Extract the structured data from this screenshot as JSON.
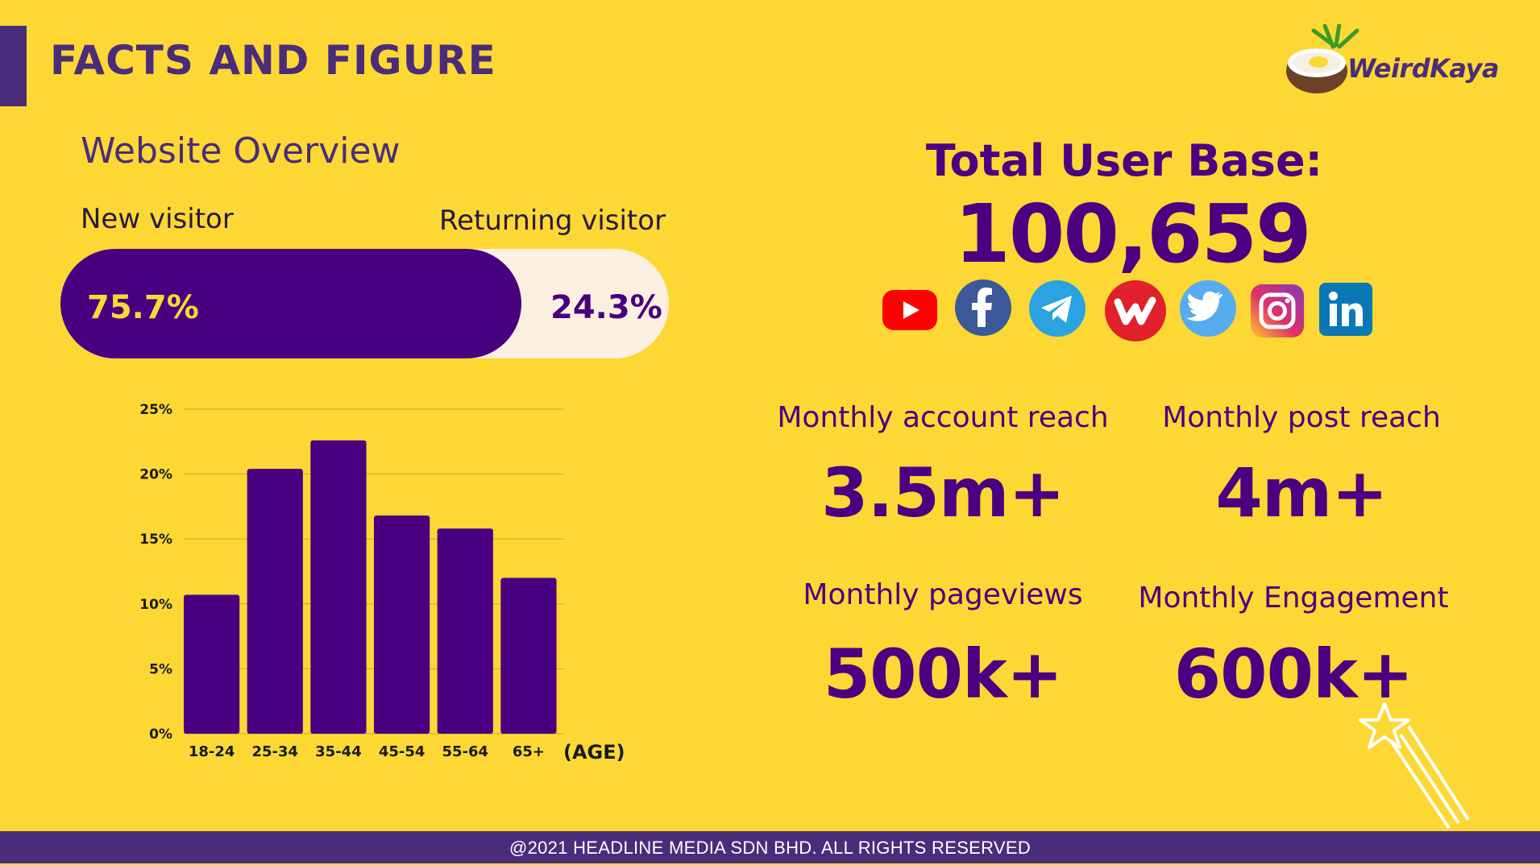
{
  "header": {
    "title": "FACTS AND FIGURE",
    "logo_text": "WeirdKaya"
  },
  "website_overview": {
    "title": "Website Overview",
    "new_visitor_label": "New visitor",
    "returning_visitor_label": "Returning visitor",
    "new_visitor_pct_text": "75.7%",
    "returning_visitor_pct_text": "24.3%",
    "new_visitor_fraction": 0.757
  },
  "chart_data": {
    "type": "bar",
    "categories": [
      "18-24",
      "25-34",
      "35-44",
      "45-54",
      "55-64",
      "65+"
    ],
    "values": [
      10.7,
      20.4,
      22.6,
      16.8,
      15.8,
      12.0
    ],
    "xlabel": "(AGE)",
    "ylabel": "",
    "ylim": [
      0,
      25
    ],
    "yticks": [
      "0%",
      "5%",
      "10%",
      "15%",
      "20%",
      "25%"
    ],
    "grid": true,
    "bar_color": "#480080"
  },
  "user_base": {
    "title": "Total User Base:",
    "value": "100,659",
    "social_icons": [
      "youtube-icon",
      "facebook-icon",
      "telegram-icon",
      "weirdkaya-icon",
      "twitter-icon",
      "instagram-icon",
      "linkedin-icon"
    ]
  },
  "stats": [
    {
      "label": "Monthly account reach",
      "value": "3.5m+"
    },
    {
      "label": "Monthly post reach",
      "value": "4m+"
    },
    {
      "label": "Monthly pageviews",
      "value": "500k+"
    },
    {
      "label": "Monthly Engagement",
      "value": "600k+"
    }
  ],
  "footer": {
    "text": "@2021 HEADLINE MEDIA SDN BHD. ALL RIGHTS RESERVED"
  },
  "colors": {
    "background": "#FDD835",
    "primary": "#4A0080",
    "accent_bar": "#4A2D7A",
    "cream": "#FCF0E0"
  }
}
